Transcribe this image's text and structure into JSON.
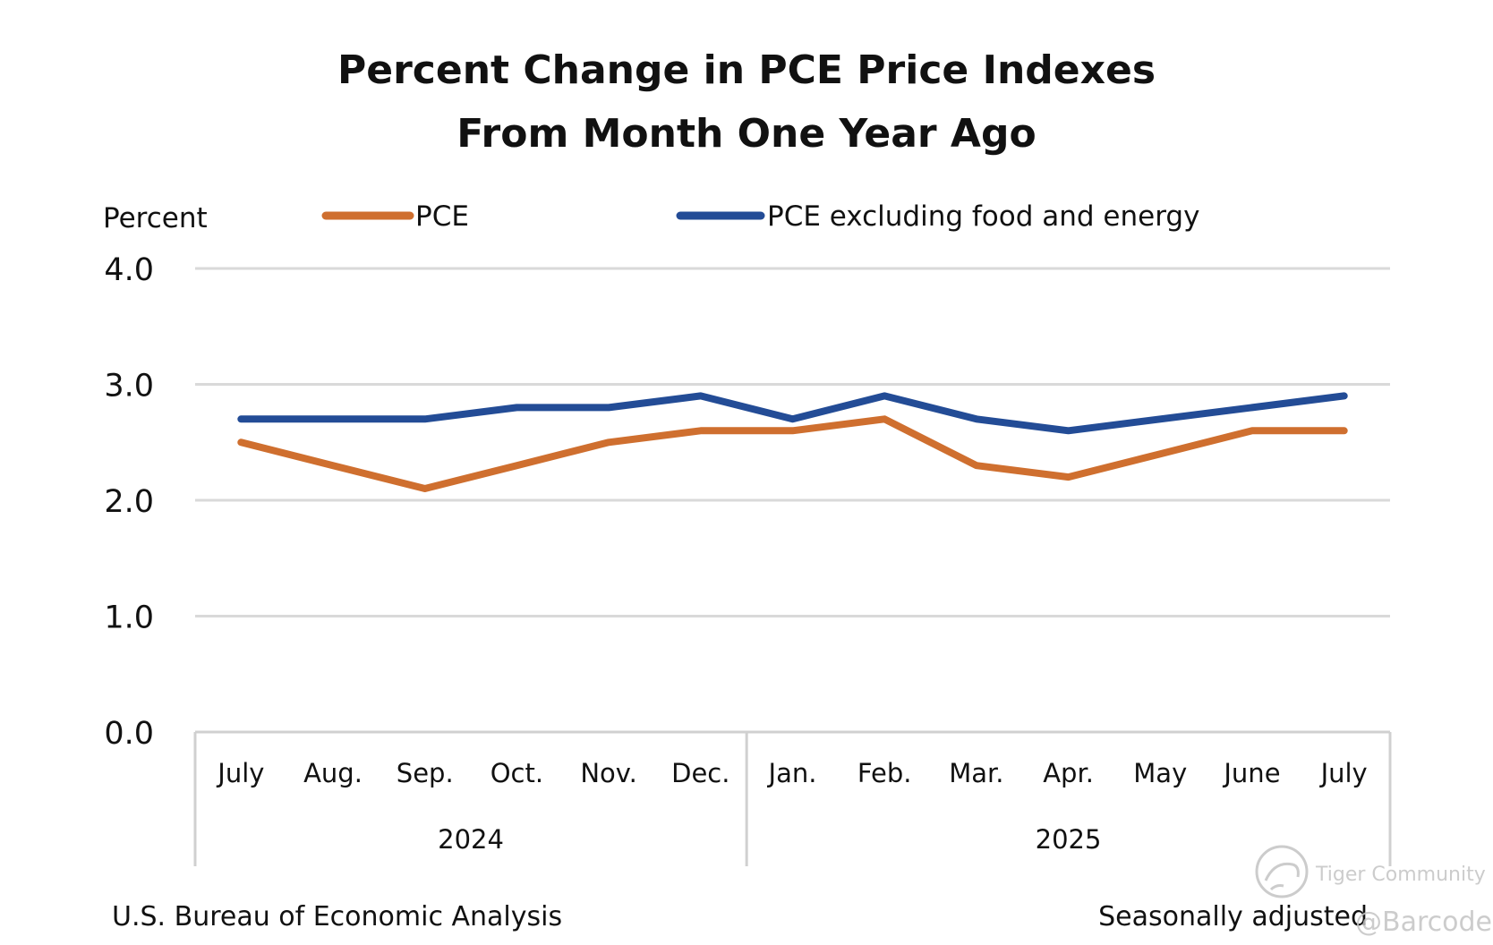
{
  "chart_data": {
    "type": "line",
    "title_lines": [
      "Percent Change in PCE Price Indexes",
      "From Month One Year Ago"
    ],
    "ylabel": "Percent",
    "ylim": [
      0,
      4
    ],
    "yticks": [
      "0.0",
      "1.0",
      "2.0",
      "3.0",
      "4.0"
    ],
    "grid": true,
    "legend_position": "top",
    "categories": [
      "July",
      "Aug.",
      "Sep.",
      "Oct.",
      "Nov.",
      "Dec.",
      "Jan.",
      "Feb.",
      "Mar.",
      "Apr.",
      "May",
      "June",
      "July"
    ],
    "year_groups": [
      {
        "label": "2024",
        "count": 6
      },
      {
        "label": "2025",
        "count": 7
      }
    ],
    "series": [
      {
        "name": "PCE",
        "color": "#CF6F2F",
        "values": [
          2.5,
          2.3,
          2.1,
          2.3,
          2.5,
          2.6,
          2.6,
          2.7,
          2.3,
          2.2,
          2.4,
          2.6,
          2.6
        ]
      },
      {
        "name": "PCE excluding food and energy",
        "color": "#234C96",
        "values": [
          2.7,
          2.7,
          2.7,
          2.8,
          2.8,
          2.9,
          2.7,
          2.9,
          2.7,
          2.6,
          2.7,
          2.8,
          2.9
        ]
      }
    ],
    "gridline_color": "#D9D9D9",
    "axis_color": "#D0D0D0"
  },
  "footer": {
    "source": "U.S. Bureau of Economic Analysis",
    "note": "Seasonally adjusted"
  },
  "watermark": {
    "community": "Tiger Community",
    "handle": "@Barcode",
    "icon": "tiger-logo-icon"
  }
}
